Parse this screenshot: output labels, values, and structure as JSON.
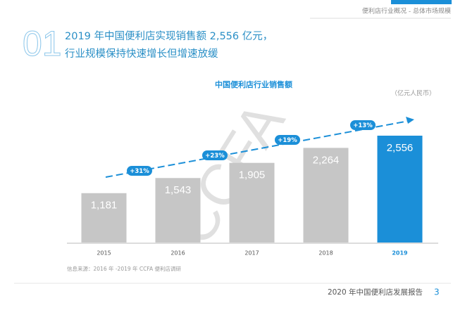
{
  "header": "便利店行业概况 - 总体市场规模",
  "section_number": "01",
  "heading": [
    "2019 年中国便利店实现销售额 2,556 亿元，",
    "行业规模保持快速增长但增速放缓"
  ],
  "source": "信息来源：2016 年 -2019 年 CCFA 便利店调研",
  "footer": "2020 年中国便利店发展报告",
  "page_number": "3",
  "watermark": "CCFA",
  "chart_data": {
    "type": "bar",
    "title": "中国便利店行业销售额",
    "unit": "（亿元人民币）",
    "categories": [
      "2015",
      "2016",
      "2017",
      "2018",
      "2019"
    ],
    "values": [
      1181,
      1543,
      1905,
      2264,
      2556
    ],
    "value_labels": [
      "1,181",
      "1,543",
      "1,905",
      "2,264",
      "2,556"
    ],
    "colors": [
      "#c6c6c6",
      "#c6c6c6",
      "#c6c6c6",
      "#c6c6c6",
      "#1b8fd8"
    ],
    "annotations": [
      "+31%",
      "+23%",
      "+19%",
      "+13%"
    ]
  }
}
